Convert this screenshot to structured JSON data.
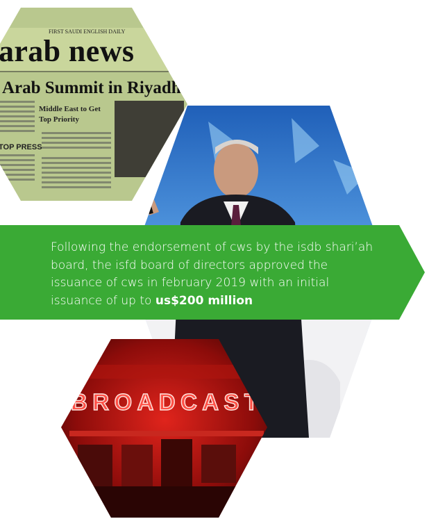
{
  "newspaper": {
    "tagline": "FIRST SAUDI ENGLISH DAILY",
    "masthead": "arab news",
    "headline": "Arab Summit in Riyadh",
    "subhead_1": "Middle East to Get",
    "subhead_2": "Top Priority",
    "column_head": "TOP PRESS"
  },
  "neon_sign": {
    "text": "BROADCAST"
  },
  "banner": {
    "lines": [
      "Following the endorsement of cws by the isdb shari’ah",
      "board, the isfd board of directors approved the",
      "issuance of cws in february 2019 with an initial"
    ],
    "last_line": "issuance of up to",
    "highlight": "us$200 million"
  }
}
